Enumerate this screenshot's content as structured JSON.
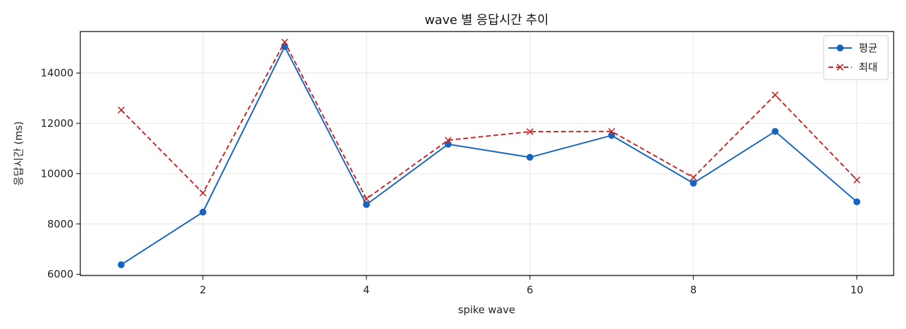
{
  "chart_data": {
    "type": "line",
    "title": "wave 별 응답시간 추이",
    "xlabel": "spike wave",
    "ylabel": "응답시간 (ms)",
    "x": [
      1,
      2,
      3,
      4,
      5,
      6,
      7,
      8,
      9,
      10
    ],
    "xticks": [
      2,
      4,
      6,
      8,
      10
    ],
    "yticks": [
      6000,
      8000,
      10000,
      12000,
      14000
    ],
    "xlim": [
      0.5,
      10.45
    ],
    "ylim": [
      5950,
      15650
    ],
    "grid": true,
    "legend_position": "top-right",
    "series": [
      {
        "name": "평균",
        "color": "#1565c0",
        "line_style": "solid",
        "marker": "circle",
        "values": [
          6380,
          8470,
          15050,
          8770,
          11170,
          10650,
          11520,
          9620,
          11680,
          8880
        ]
      },
      {
        "name": "최대",
        "color": "#c62828",
        "line_style": "dashed",
        "marker": "x",
        "values": [
          12530,
          9230,
          15230,
          9000,
          11330,
          11670,
          11680,
          9850,
          13130,
          9750
        ]
      }
    ]
  }
}
